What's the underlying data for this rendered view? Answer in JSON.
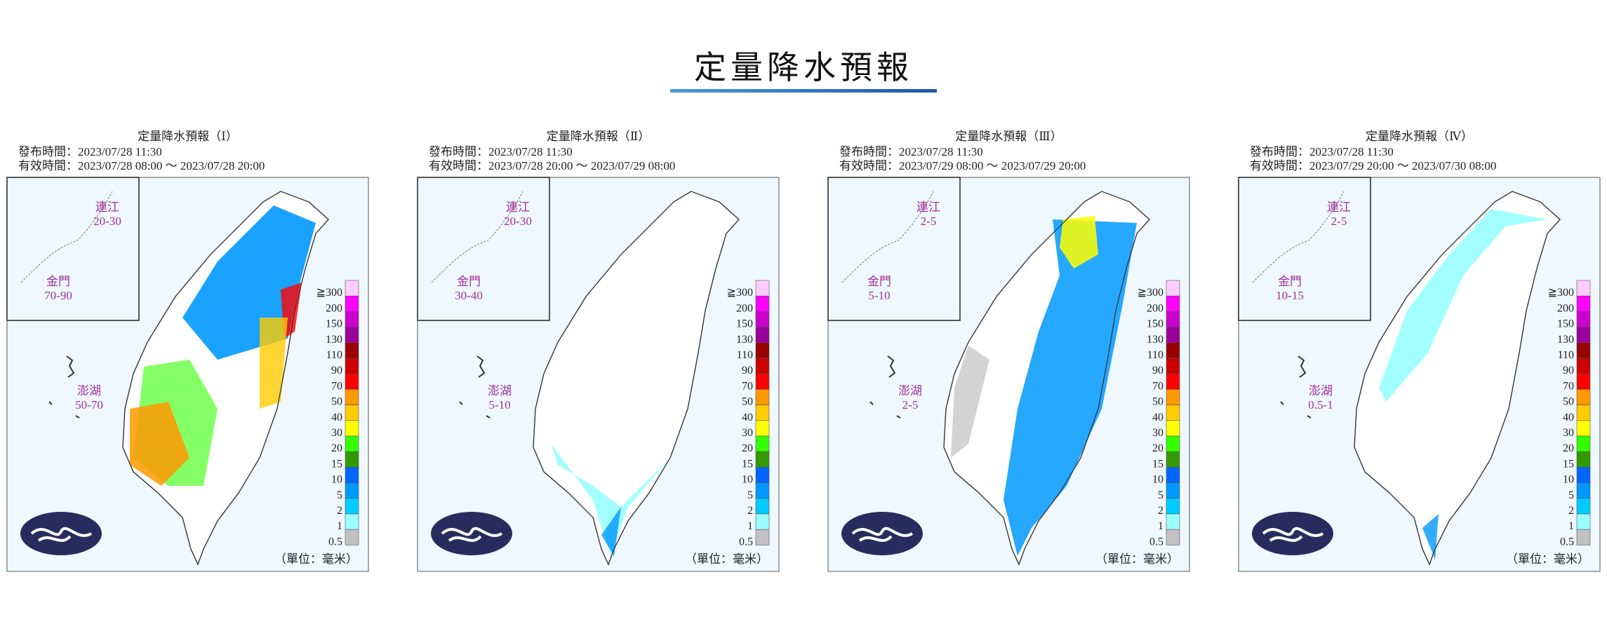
{
  "header": {
    "title": "定量降水預報"
  },
  "panels": [
    {
      "title": "定量降水預報（Ⅰ）",
      "issued": "發布時間：2023/07/28 11:30",
      "valid": "有效時間：2023/07/28 08:00 ～ 2023/07/28 20:00",
      "matsu_name": "連江",
      "matsu": "20-30",
      "kinmen_name": "金門",
      "kinmen": "70-90",
      "penghu_name": "澎湖",
      "penghu": "50-70",
      "unit": "（單位：毫米）"
    },
    {
      "title": "定量降水預報（Ⅱ）",
      "issued": "發布時間：2023/07/28 11:30",
      "valid": "有效時間：2023/07/28 20:00 ～ 2023/07/29 08:00",
      "matsu_name": "連江",
      "matsu": "20-30",
      "kinmen_name": "金門",
      "kinmen": "30-40",
      "penghu_name": "澎湖",
      "penghu": "5-10",
      "unit": "（單位：毫米）"
    },
    {
      "title": "定量降水預報（Ⅲ）",
      "issued": "發布時間：2023/07/28 11:30",
      "valid": "有效時間：2023/07/29 08:00 ～ 2023/07/29 20:00",
      "matsu_name": "連江",
      "matsu": "2-5",
      "kinmen_name": "金門",
      "kinmen": "5-10",
      "penghu_name": "澎湖",
      "penghu": "2-5",
      "unit": "（單位：毫米）"
    },
    {
      "title": "定量降水預報（Ⅳ）",
      "issued": "發布時間：2023/07/28 11:30",
      "valid": "有效時間：2023/07/29 20:00 ～ 2023/07/30 08:00",
      "matsu_name": "連江",
      "matsu": "2-5",
      "kinmen_name": "金門",
      "kinmen": "10-15",
      "penghu_name": "澎湖",
      "penghu": "0.5-1",
      "unit": "（單位：毫米）"
    }
  ],
  "legend": {
    "labels": [
      "≧300",
      "200",
      "150",
      "130",
      "110",
      "90",
      "70",
      "50",
      "40",
      "30",
      "20",
      "15",
      "10",
      "5",
      "2",
      "1",
      "0.5"
    ],
    "colors": [
      "#ffccff",
      "#ff00ff",
      "#cc00cc",
      "#990099",
      "#990000",
      "#cc0000",
      "#ff0000",
      "#ff9900",
      "#ffcc00",
      "#ffff00",
      "#33ff00",
      "#329900",
      "#0166ff",
      "#0099ff",
      "#00ccff",
      "#99ffff",
      "#c1c1c1"
    ]
  }
}
